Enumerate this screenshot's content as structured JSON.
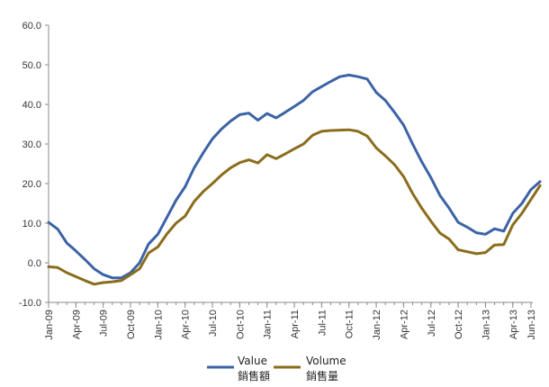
{
  "chart_data": {
    "type": "line",
    "title": "",
    "xlabel": "",
    "ylabel": "",
    "ylim": [
      -10,
      60
    ],
    "y_ticks": [
      -10,
      0,
      10,
      20,
      30,
      40,
      50,
      60
    ],
    "y_tick_labels": [
      "-10.0",
      "0.0",
      "10.0",
      "20.0",
      "30.0",
      "40.0",
      "50.0",
      "60.0"
    ],
    "x_tick_labels": [
      "Jan-09",
      "Apr-09",
      "Jul-09",
      "Oct-09",
      "Jan-10",
      "Apr-10",
      "Jul-10",
      "Oct-10",
      "Jan-11",
      "Apr-11",
      "Jul-11",
      "Oct-11",
      "Jan-12",
      "Apr-12",
      "Jul-12",
      "Oct-12",
      "Jan-13",
      "Apr-13",
      "Jun-13"
    ],
    "x_tick_month_index": [
      0,
      3,
      6,
      9,
      12,
      15,
      18,
      21,
      24,
      27,
      30,
      33,
      36,
      39,
      42,
      45,
      48,
      51,
      53
    ],
    "grid": false,
    "legend_position": "bottom",
    "series": [
      {
        "name": "Value",
        "name_zh": "銷售額",
        "color": "#3b63a6",
        "values": [
          10.2,
          8.5,
          5.0,
          3.0,
          0.8,
          -1.5,
          -3.0,
          -3.8,
          -3.8,
          -2.5,
          0.0,
          4.8,
          7.2,
          11.5,
          15.8,
          19.2,
          24.0,
          27.8,
          31.3,
          33.8,
          35.8,
          37.4,
          37.8,
          36.0,
          37.7,
          36.6,
          38.0,
          39.5,
          41.0,
          43.2,
          44.5,
          45.8,
          47.0,
          47.4,
          47.0,
          46.4,
          43.0,
          41.0,
          38.0,
          34.8,
          30.0,
          25.5,
          21.5,
          17.0,
          13.8,
          10.2,
          9.0,
          7.6,
          7.2,
          8.6,
          8.0,
          12.5,
          15.0,
          18.5,
          20.5
        ]
      },
      {
        "name": "Volume",
        "name_zh": "銷售量",
        "color": "#8a6d1c",
        "values": [
          -1.0,
          -1.2,
          -2.5,
          -3.5,
          -4.5,
          -5.4,
          -5.0,
          -4.8,
          -4.5,
          -3.0,
          -1.5,
          2.5,
          4.0,
          7.3,
          10.0,
          11.8,
          15.5,
          18.0,
          20.0,
          22.2,
          24.0,
          25.3,
          26.0,
          25.2,
          27.3,
          26.3,
          27.5,
          28.8,
          30.0,
          32.2,
          33.2,
          33.4,
          33.5,
          33.6,
          33.2,
          32.0,
          29.0,
          27.0,
          24.8,
          21.8,
          17.5,
          13.8,
          10.5,
          7.5,
          6.0,
          3.3,
          2.8,
          2.3,
          2.6,
          4.5,
          4.6,
          9.6,
          12.5,
          16.0,
          19.5
        ]
      }
    ]
  }
}
